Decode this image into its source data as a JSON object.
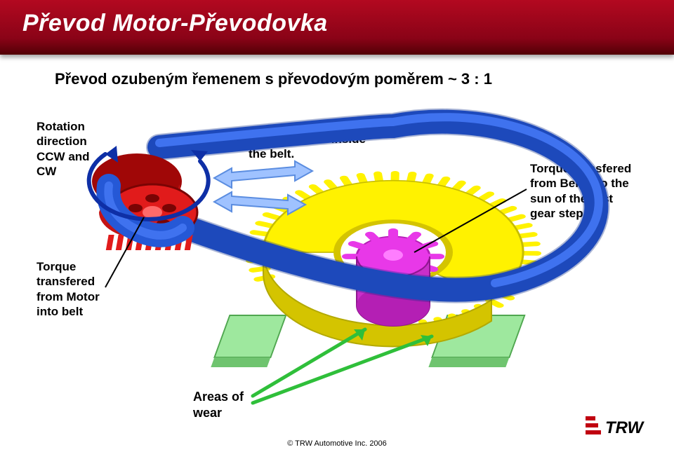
{
  "title": "Převod Motor-Převodovka",
  "subtitle": "Převod ozubeným řemenem s převodovým poměrem ~ 3 : 1",
  "labels": {
    "rotation": "Rotation\ndirection\nCCW and\nCW",
    "tensile": "Tensile forces inside\nthe belt.",
    "torque_belt": "Torque transfered\nfrom Belt into the\nsun of the first\ngear step",
    "torque_motor": "Torque\ntransfered\nfrom Motor\ninto belt",
    "areas_of_wear": "Areas of\nwear"
  },
  "footer": "© TRW Automotive Inc. 2006",
  "logo_text": "TRW",
  "colors": {
    "belt": "#2558d6",
    "belt_edge": "#0d2f8a",
    "small_gear_body": "#e11b1b",
    "small_gear_shade": "#a00707",
    "big_gear_body": "#fff200",
    "big_gear_shade": "#d4c400",
    "center_gear": "#e838e8",
    "center_gear_shade": "#b41fb4",
    "pedestal": "#9ee89e",
    "arrow_light": "#9fc2ff",
    "arrow_green": "#2fbf3a",
    "rotation_arrow": "#0e2fa6"
  }
}
